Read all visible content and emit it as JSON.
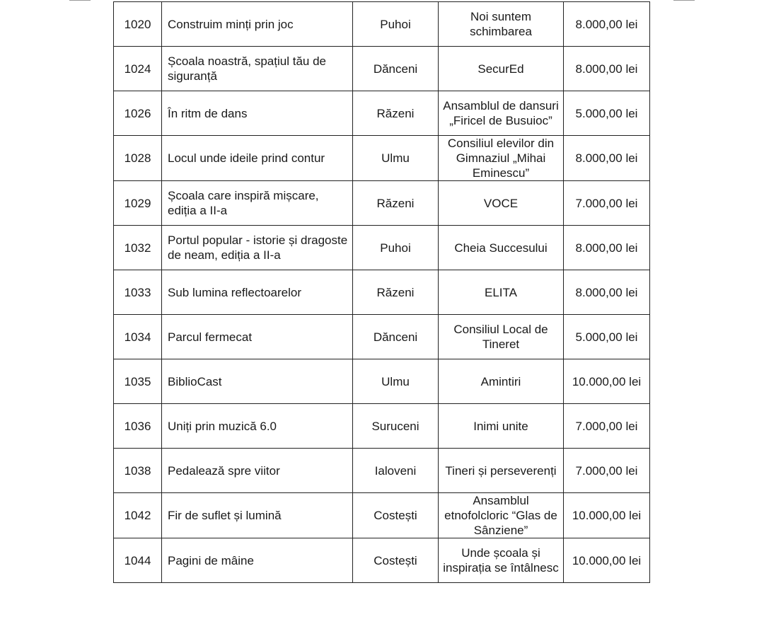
{
  "table": {
    "rows": [
      {
        "id": "1020",
        "title": "Construim minți prin joc",
        "locality": "Puhoi",
        "team": "Noi suntem schimbarea",
        "amount": "8.000,00 lei"
      },
      {
        "id": "1024",
        "title": "Școala noastră, spațiul tău de siguranță",
        "locality": "Dănceni",
        "team": "SecurEd",
        "amount": "8.000,00 lei"
      },
      {
        "id": "1026",
        "title": "În ritm de dans",
        "locality": "Răzeni",
        "team": "Ansamblul de dansuri „Firicel de Busuioc”",
        "amount": "5.000,00 lei"
      },
      {
        "id": "1028",
        "title": "Locul unde ideile prind contur",
        "locality": "Ulmu",
        "team": "Consiliul elevilor din Gimnaziul „Mihai Eminescu”",
        "amount": "8.000,00 lei"
      },
      {
        "id": "1029",
        "title": "Școala care inspiră mișcare, ediția a II-a",
        "locality": "Răzeni",
        "team": "VOCE",
        "amount": "7.000,00 lei"
      },
      {
        "id": "1032",
        "title": "Portul popular - istorie și dragoste de neam, ediția a II-a",
        "locality": "Puhoi",
        "team": "Cheia Succesului",
        "amount": "8.000,00 lei"
      },
      {
        "id": "1033",
        "title": "Sub lumina reflectoarelor",
        "locality": "Răzeni",
        "team": "ELITA",
        "amount": "8.000,00 lei"
      },
      {
        "id": "1034",
        "title": "Parcul fermecat",
        "locality": "Dănceni",
        "team": "Consiliul Local de Tineret",
        "amount": "5.000,00 lei"
      },
      {
        "id": "1035",
        "title": "BiblioCast",
        "locality": "Ulmu",
        "team": "Amintiri",
        "amount": "10.000,00 lei"
      },
      {
        "id": "1036",
        "title": "Uniți prin muzică 6.0",
        "locality": "Suruceni",
        "team": "Inimi unite",
        "amount": "7.000,00 lei"
      },
      {
        "id": "1038",
        "title": "Pedalează spre viitor",
        "locality": "Ialoveni",
        "team": "Tineri și perseverenți",
        "amount": "7.000,00 lei"
      },
      {
        "id": "1042",
        "title": "Fir de suflet și lumină",
        "locality": "Costești",
        "team": "Ansamblul etnofolcloric “Glas de Sânziene”",
        "amount": "10.000,00 lei"
      },
      {
        "id": "1044",
        "title": "Pagini de mâine",
        "locality": "Costești",
        "team": "Unde școala și inspirația se întâlnesc",
        "amount": "10.000,00 lei"
      }
    ]
  }
}
